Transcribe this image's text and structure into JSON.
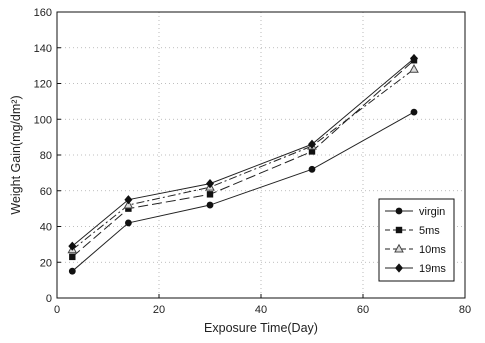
{
  "chart_data": {
    "type": "line",
    "xlabel": "Exposure Time(Day)",
    "ylabel": "Weight Gain(mg/dm²)",
    "xlim": [
      0,
      80
    ],
    "ylim": [
      0,
      160
    ],
    "xticks": [
      "0",
      "20",
      "40",
      "60",
      "80"
    ],
    "yticks": [
      "0",
      "20",
      "40",
      "60",
      "80",
      "100",
      "120",
      "140",
      "160"
    ],
    "grid": "dotted",
    "legend_position": "right",
    "series": [
      {
        "name": "virgin",
        "marker": "circle",
        "dash": "solid",
        "x": [
          3,
          14,
          30,
          50,
          70
        ],
        "y": [
          15,
          42,
          52,
          72,
          104
        ]
      },
      {
        "name": "5ms",
        "marker": "square",
        "dash": "long-dash",
        "x": [
          3,
          14,
          30,
          50,
          70
        ],
        "y": [
          23,
          50,
          58,
          82,
          133
        ]
      },
      {
        "name": "10ms",
        "marker": "triangle",
        "dash": "dash-dot",
        "x": [
          3,
          14,
          30,
          50,
          70
        ],
        "y": [
          27,
          52,
          62,
          85,
          128
        ]
      },
      {
        "name": "19ms",
        "marker": "diamond",
        "dash": "solid",
        "x": [
          3,
          14,
          30,
          50,
          70
        ],
        "y": [
          29,
          55,
          64,
          86,
          134
        ]
      }
    ]
  }
}
